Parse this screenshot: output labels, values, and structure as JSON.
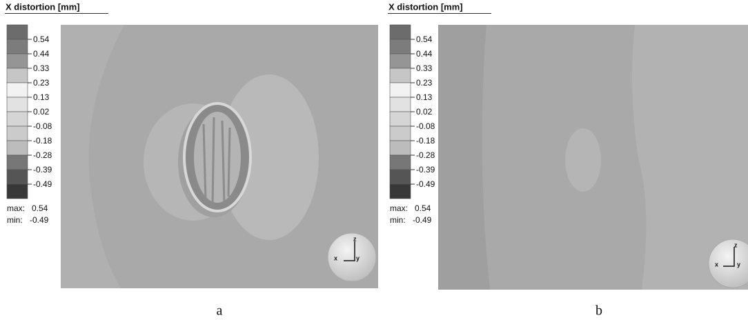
{
  "panels": [
    {
      "title": "X distortion [mm]",
      "legend_labels": [
        "0.54",
        "0.44",
        "0.33",
        "0.23",
        "0.13",
        "0.02",
        "-0.08",
        "-0.18",
        "-0.28",
        "-0.39",
        "-0.49"
      ],
      "max_label": "max:",
      "max": "0.54",
      "min_label": "min:",
      "min": "-0.49",
      "axes": {
        "x": "x",
        "y": "y",
        "z": "z"
      },
      "caption": "a"
    },
    {
      "title": "X distortion [mm]",
      "legend_labels": [
        "0.54",
        "0.44",
        "0.33",
        "0.23",
        "0.13",
        "0.02",
        "-0.08",
        "-0.18",
        "-0.28",
        "-0.39",
        "-0.49"
      ],
      "max_label": "max:",
      "max": "0.54",
      "min_label": "min:",
      "min": "-0.49",
      "axes": {
        "x": "x",
        "y": "y",
        "z": "z"
      },
      "caption": "b"
    }
  ]
}
